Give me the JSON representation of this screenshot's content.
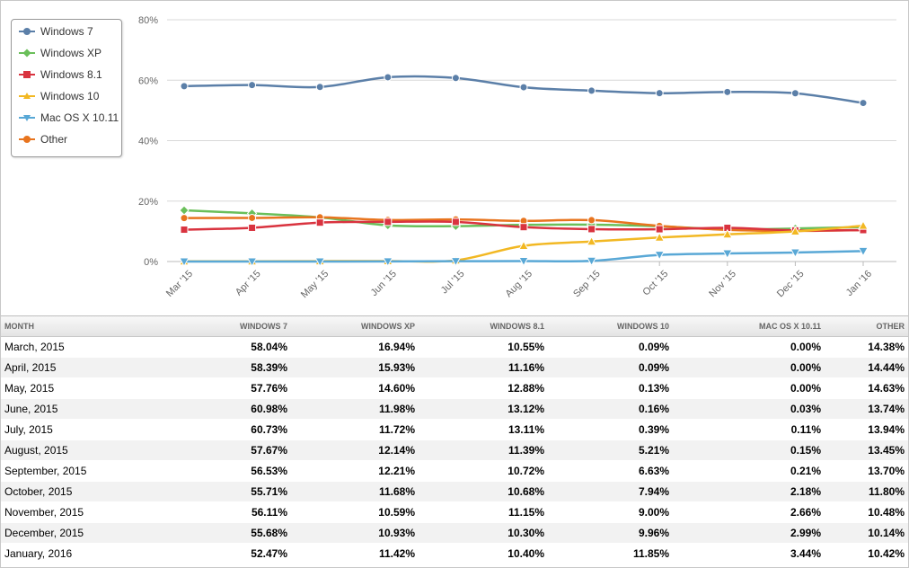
{
  "chart_data": {
    "type": "line",
    "categories": [
      "Mar '15",
      "Apr '15",
      "May '15",
      "Jun '15",
      "Jul '15",
      "Aug '15",
      "Sep '15",
      "Oct '15",
      "Nov '15",
      "Dec '15",
      "Jan '16"
    ],
    "y_ticks": [
      "0%",
      "20%",
      "40%",
      "60%",
      "80%"
    ],
    "ylim": [
      0,
      80
    ],
    "grid": true,
    "legend_position": "top-left",
    "series": [
      {
        "name": "Windows 7",
        "color": "#5b7fa8",
        "marker": "circle",
        "values": [
          58.04,
          58.39,
          57.76,
          60.98,
          60.73,
          57.67,
          56.53,
          55.71,
          56.11,
          55.68,
          52.47
        ]
      },
      {
        "name": "Windows XP",
        "color": "#6abf5a",
        "marker": "diamond",
        "values": [
          16.94,
          15.93,
          14.6,
          11.98,
          11.72,
          12.14,
          12.21,
          11.68,
          10.59,
          10.93,
          11.42
        ]
      },
      {
        "name": "Windows 8.1",
        "color": "#d9333f",
        "marker": "square",
        "values": [
          10.55,
          11.16,
          12.88,
          13.12,
          13.11,
          11.39,
          10.72,
          10.68,
          11.15,
          10.3,
          10.4
        ]
      },
      {
        "name": "Windows 10",
        "color": "#f2b823",
        "marker": "triangle-up",
        "values": [
          0.09,
          0.09,
          0.13,
          0.16,
          0.39,
          5.21,
          6.63,
          7.94,
          9.0,
          9.96,
          11.85
        ]
      },
      {
        "name": "Mac OS X 10.11",
        "color": "#59a8d6",
        "marker": "triangle-down",
        "values": [
          0.0,
          0.0,
          0.0,
          0.03,
          0.11,
          0.15,
          0.21,
          2.18,
          2.66,
          2.99,
          3.44
        ]
      },
      {
        "name": "Other",
        "color": "#e8741e",
        "marker": "circle",
        "values": [
          14.38,
          14.44,
          14.63,
          13.74,
          13.94,
          13.45,
          13.7,
          11.8,
          10.48,
          10.14,
          10.42
        ]
      }
    ]
  },
  "table": {
    "headers": [
      "MONTH",
      "WINDOWS 7",
      "WINDOWS XP",
      "WINDOWS 8.1",
      "WINDOWS 10",
      "MAC OS X 10.11",
      "OTHER"
    ],
    "rows": [
      [
        "March, 2015",
        "58.04%",
        "16.94%",
        "10.55%",
        "0.09%",
        "0.00%",
        "14.38%"
      ],
      [
        "April, 2015",
        "58.39%",
        "15.93%",
        "11.16%",
        "0.09%",
        "0.00%",
        "14.44%"
      ],
      [
        "May, 2015",
        "57.76%",
        "14.60%",
        "12.88%",
        "0.13%",
        "0.00%",
        "14.63%"
      ],
      [
        "June, 2015",
        "60.98%",
        "11.98%",
        "13.12%",
        "0.16%",
        "0.03%",
        "13.74%"
      ],
      [
        "July, 2015",
        "60.73%",
        "11.72%",
        "13.11%",
        "0.39%",
        "0.11%",
        "13.94%"
      ],
      [
        "August, 2015",
        "57.67%",
        "12.14%",
        "11.39%",
        "5.21%",
        "0.15%",
        "13.45%"
      ],
      [
        "September, 2015",
        "56.53%",
        "12.21%",
        "10.72%",
        "6.63%",
        "0.21%",
        "13.70%"
      ],
      [
        "October, 2015",
        "55.71%",
        "11.68%",
        "10.68%",
        "7.94%",
        "2.18%",
        "11.80%"
      ],
      [
        "November, 2015",
        "56.11%",
        "10.59%",
        "11.15%",
        "9.00%",
        "2.66%",
        "10.48%"
      ],
      [
        "December, 2015",
        "55.68%",
        "10.93%",
        "10.30%",
        "9.96%",
        "2.99%",
        "10.14%"
      ],
      [
        "January, 2016",
        "52.47%",
        "11.42%",
        "10.40%",
        "11.85%",
        "3.44%",
        "10.42%"
      ]
    ]
  }
}
